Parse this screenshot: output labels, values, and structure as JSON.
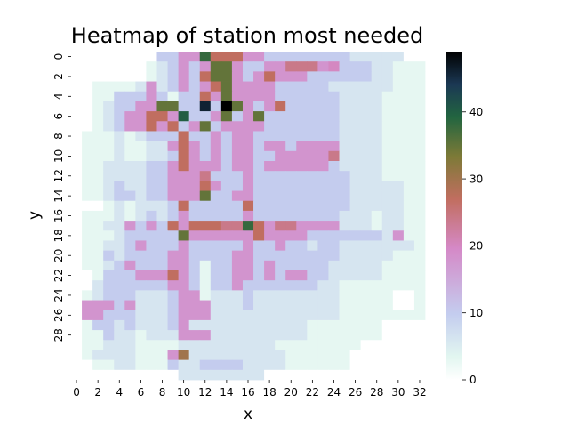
{
  "chart_data": {
    "type": "heatmap",
    "title": "Heatmap of station most needed",
    "xlabel": "x",
    "ylabel": "y",
    "colormap": "cubehelix_r",
    "vmin": 0,
    "vmax": 49,
    "colorbar_ticks": [
      0,
      10,
      20,
      30,
      40
    ],
    "x_ticks": [
      0,
      2,
      4,
      6,
      8,
      10,
      12,
      14,
      16,
      18,
      20,
      22,
      24,
      26,
      28,
      30,
      32
    ],
    "y_ticks": [
      0,
      2,
      4,
      6,
      8,
      10,
      12,
      14,
      16,
      18,
      20,
      22,
      24,
      26,
      28
    ],
    "matrix": [
      [
        0,
        0,
        0,
        0,
        0,
        0,
        0,
        0,
        10,
        10,
        18,
        18,
        38,
        27,
        27,
        27,
        18,
        18,
        10,
        10,
        10,
        10,
        10,
        10,
        10,
        10,
        6,
        6,
        6,
        6,
        6,
        0,
        0
      ],
      [
        0,
        0,
        0,
        0,
        0,
        0,
        0,
        3,
        6,
        10,
        18,
        10,
        18,
        35,
        35,
        18,
        10,
        10,
        18,
        18,
        24,
        24,
        24,
        18,
        20,
        10,
        10,
        10,
        6,
        6,
        3,
        3,
        3
      ],
      [
        0,
        0,
        0,
        0,
        0,
        0,
        0,
        3,
        6,
        10,
        18,
        10,
        27,
        35,
        35,
        18,
        10,
        18,
        27,
        18,
        18,
        18,
        10,
        10,
        10,
        10,
        10,
        10,
        6,
        6,
        3,
        3,
        3
      ],
      [
        0,
        0,
        3,
        3,
        3,
        3,
        6,
        18,
        6,
        10,
        18,
        10,
        18,
        27,
        35,
        18,
        18,
        18,
        18,
        10,
        10,
        10,
        10,
        10,
        6,
        6,
        6,
        6,
        6,
        6,
        3,
        3,
        3
      ],
      [
        0,
        0,
        3,
        3,
        10,
        10,
        10,
        18,
        10,
        3,
        10,
        10,
        27,
        18,
        35,
        18,
        18,
        18,
        18,
        10,
        10,
        10,
        10,
        10,
        10,
        6,
        6,
        6,
        6,
        3,
        3,
        3,
        3
      ],
      [
        0,
        0,
        3,
        6,
        10,
        10,
        18,
        18,
        35,
        35,
        10,
        10,
        46,
        10,
        49,
        35,
        18,
        10,
        18,
        27,
        10,
        10,
        10,
        10,
        10,
        6,
        6,
        6,
        6,
        3,
        3,
        3,
        3
      ],
      [
        0,
        0,
        3,
        6,
        10,
        18,
        18,
        27,
        27,
        18,
        40,
        10,
        10,
        18,
        35,
        10,
        18,
        35,
        10,
        10,
        10,
        10,
        10,
        10,
        10,
        6,
        6,
        6,
        6,
        3,
        3,
        3,
        3
      ],
      [
        0,
        0,
        3,
        6,
        10,
        18,
        18,
        27,
        18,
        27,
        10,
        18,
        35,
        10,
        18,
        18,
        18,
        18,
        10,
        10,
        10,
        10,
        10,
        10,
        10,
        6,
        6,
        6,
        6,
        3,
        3,
        3,
        3
      ],
      [
        0,
        3,
        3,
        3,
        6,
        3,
        6,
        10,
        10,
        10,
        27,
        10,
        10,
        18,
        10,
        18,
        18,
        10,
        10,
        10,
        10,
        10,
        10,
        10,
        10,
        6,
        6,
        6,
        6,
        3,
        3,
        3,
        3
      ],
      [
        0,
        3,
        3,
        3,
        6,
        3,
        3,
        6,
        6,
        18,
        27,
        18,
        10,
        18,
        10,
        18,
        18,
        10,
        18,
        18,
        10,
        18,
        18,
        18,
        18,
        6,
        6,
        6,
        6,
        3,
        3,
        3,
        3
      ],
      [
        0,
        3,
        3,
        3,
        6,
        3,
        3,
        6,
        6,
        10,
        27,
        18,
        10,
        18,
        10,
        18,
        18,
        10,
        10,
        18,
        18,
        18,
        18,
        18,
        24,
        6,
        6,
        6,
        6,
        3,
        3,
        3,
        3
      ],
      [
        0,
        3,
        3,
        6,
        6,
        6,
        6,
        10,
        10,
        18,
        27,
        18,
        18,
        18,
        10,
        18,
        18,
        10,
        18,
        18,
        18,
        18,
        18,
        18,
        10,
        6,
        6,
        6,
        6,
        3,
        3,
        3,
        3
      ],
      [
        0,
        3,
        3,
        6,
        6,
        6,
        6,
        10,
        10,
        18,
        18,
        18,
        24,
        10,
        10,
        10,
        18,
        10,
        10,
        10,
        10,
        10,
        10,
        10,
        10,
        10,
        6,
        6,
        6,
        3,
        3,
        3,
        3
      ],
      [
        0,
        3,
        3,
        6,
        10,
        6,
        6,
        10,
        10,
        18,
        18,
        18,
        27,
        18,
        10,
        10,
        18,
        10,
        10,
        10,
        10,
        10,
        10,
        10,
        10,
        10,
        6,
        6,
        6,
        6,
        6,
        3,
        3
      ],
      [
        0,
        3,
        3,
        6,
        10,
        10,
        6,
        10,
        10,
        18,
        18,
        18,
        35,
        10,
        10,
        18,
        18,
        10,
        10,
        10,
        10,
        10,
        10,
        10,
        10,
        10,
        6,
        6,
        6,
        6,
        6,
        3,
        3
      ],
      [
        0,
        0,
        0,
        3,
        6,
        3,
        6,
        6,
        6,
        10,
        27,
        10,
        10,
        10,
        10,
        10,
        27,
        10,
        10,
        10,
        10,
        10,
        10,
        10,
        10,
        10,
        6,
        6,
        6,
        6,
        6,
        3,
        3
      ],
      [
        0,
        3,
        3,
        3,
        6,
        3,
        6,
        10,
        6,
        10,
        18,
        10,
        10,
        10,
        10,
        10,
        18,
        10,
        10,
        10,
        10,
        10,
        10,
        10,
        10,
        6,
        6,
        6,
        3,
        6,
        6,
        3,
        3
      ],
      [
        0,
        3,
        3,
        6,
        6,
        18,
        10,
        18,
        10,
        27,
        18,
        27,
        27,
        27,
        24,
        24,
        38,
        27,
        18,
        24,
        24,
        18,
        18,
        18,
        18,
        6,
        6,
        6,
        3,
        6,
        6,
        3,
        3
      ],
      [
        0,
        3,
        3,
        3,
        6,
        10,
        10,
        10,
        10,
        10,
        35,
        18,
        18,
        18,
        18,
        18,
        18,
        27,
        18,
        18,
        18,
        18,
        10,
        10,
        10,
        10,
        10,
        10,
        10,
        6,
        18,
        3,
        3
      ],
      [
        0,
        3,
        3,
        6,
        6,
        10,
        18,
        10,
        10,
        10,
        18,
        10,
        10,
        10,
        10,
        10,
        18,
        10,
        10,
        18,
        10,
        10,
        6,
        10,
        10,
        6,
        6,
        6,
        6,
        6,
        6,
        6,
        3
      ],
      [
        0,
        3,
        3,
        10,
        6,
        10,
        10,
        10,
        10,
        18,
        18,
        10,
        10,
        10,
        10,
        18,
        18,
        10,
        10,
        10,
        10,
        10,
        10,
        10,
        10,
        6,
        6,
        6,
        6,
        6,
        3,
        3,
        3
      ],
      [
        0,
        3,
        3,
        6,
        10,
        18,
        10,
        10,
        10,
        18,
        18,
        10,
        3,
        10,
        10,
        18,
        18,
        10,
        18,
        10,
        10,
        10,
        10,
        10,
        6,
        6,
        6,
        6,
        6,
        3,
        3,
        3,
        3
      ],
      [
        0,
        0,
        3,
        10,
        10,
        10,
        18,
        18,
        18,
        27,
        18,
        10,
        3,
        10,
        10,
        18,
        18,
        10,
        18,
        10,
        18,
        18,
        10,
        10,
        6,
        6,
        6,
        6,
        6,
        3,
        3,
        3,
        3
      ],
      [
        0,
        0,
        6,
        10,
        10,
        10,
        10,
        10,
        10,
        18,
        18,
        10,
        3,
        10,
        10,
        18,
        10,
        10,
        10,
        10,
        10,
        10,
        10,
        6,
        6,
        3,
        3,
        3,
        3,
        3,
        3,
        3,
        3
      ],
      [
        0,
        3,
        6,
        10,
        10,
        10,
        6,
        6,
        6,
        10,
        18,
        18,
        3,
        6,
        6,
        6,
        10,
        6,
        6,
        6,
        6,
        6,
        6,
        6,
        6,
        3,
        3,
        3,
        3,
        3,
        0,
        0,
        3
      ],
      [
        0,
        18,
        18,
        18,
        10,
        18,
        6,
        6,
        6,
        10,
        18,
        18,
        18,
        6,
        6,
        6,
        10,
        6,
        6,
        6,
        6,
        6,
        6,
        6,
        6,
        3,
        3,
        3,
        3,
        3,
        0,
        0,
        3
      ],
      [
        0,
        18,
        18,
        10,
        10,
        10,
        6,
        6,
        6,
        10,
        18,
        18,
        18,
        6,
        6,
        6,
        6,
        6,
        6,
        6,
        6,
        6,
        6,
        6,
        6,
        3,
        3,
        3,
        3,
        3,
        3,
        3,
        3
      ],
      [
        0,
        3,
        10,
        10,
        6,
        10,
        6,
        6,
        6,
        10,
        18,
        6,
        6,
        6,
        6,
        6,
        6,
        6,
        6,
        6,
        6,
        6,
        3,
        3,
        3,
        3,
        3,
        3,
        3,
        0,
        0,
        0,
        0
      ],
      [
        0,
        3,
        3,
        10,
        6,
        6,
        3,
        6,
        6,
        6,
        18,
        18,
        18,
        6,
        6,
        6,
        6,
        6,
        6,
        6,
        6,
        6,
        3,
        3,
        3,
        3,
        3,
        3,
        3,
        0,
        0,
        0,
        0
      ],
      [
        0,
        3,
        3,
        6,
        6,
        6,
        3,
        3,
        3,
        3,
        6,
        6,
        6,
        6,
        6,
        6,
        6,
        6,
        6,
        3,
        3,
        3,
        3,
        3,
        3,
        3,
        3,
        0,
        0,
        0,
        0,
        0,
        0
      ],
      [
        0,
        3,
        6,
        6,
        6,
        6,
        3,
        3,
        3,
        18,
        30,
        6,
        6,
        6,
        6,
        6,
        6,
        6,
        6,
        6,
        3,
        3,
        3,
        3,
        3,
        3,
        0,
        0,
        0,
        0,
        0,
        0,
        0
      ],
      [
        0,
        0,
        3,
        3,
        6,
        6,
        3,
        3,
        3,
        10,
        6,
        6,
        10,
        10,
        10,
        10,
        6,
        6,
        6,
        6,
        3,
        3,
        3,
        3,
        3,
        3,
        0,
        0,
        0,
        0,
        0,
        0,
        0
      ],
      [
        0,
        0,
        0,
        0,
        0,
        0,
        0,
        0,
        0,
        0,
        6,
        6,
        6,
        6,
        6,
        6,
        6,
        6,
        0,
        0,
        0,
        0,
        0,
        0,
        0,
        0,
        0,
        0,
        0,
        0,
        0,
        0,
        0
      ]
    ]
  }
}
